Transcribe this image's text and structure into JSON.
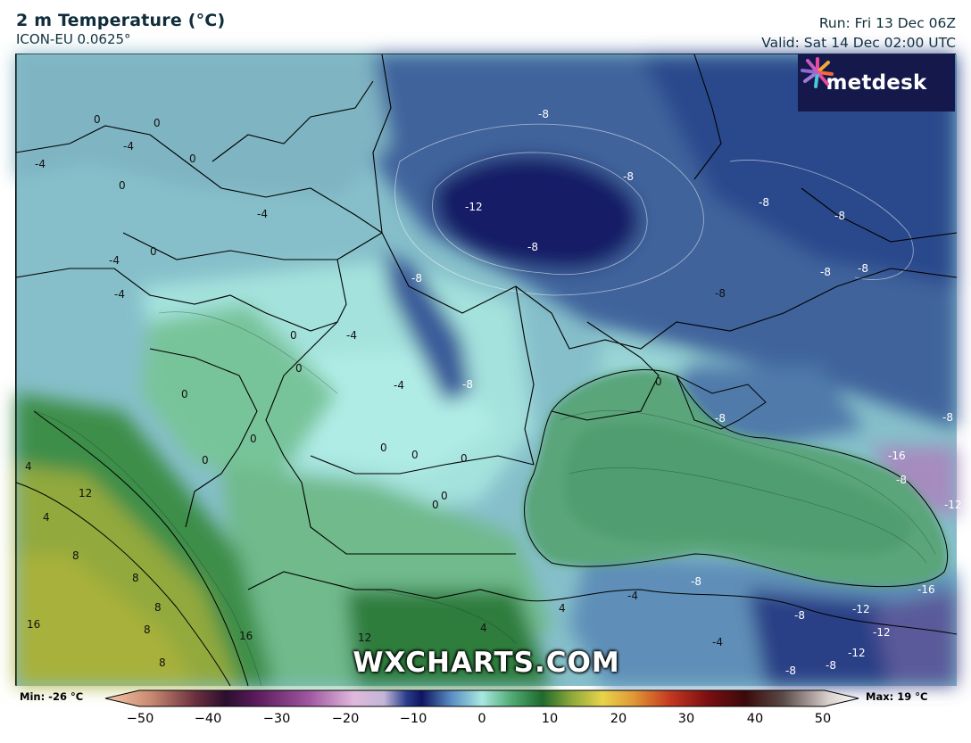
{
  "header": {
    "title": "2 m Temperature (°C)",
    "model": "ICON-EU 0.0625°",
    "run": "Run: Fri 13 Dec 06Z",
    "valid": "Valid: Sat 14 Dec 02:00 UTC"
  },
  "logo": {
    "text": "metdesk"
  },
  "watermark": "WXCHARTS.COM",
  "legend": {
    "min_label": "Min: -26 °C",
    "max_label": "Max: 19 °C",
    "ticks": [
      "−50",
      "−40",
      "−30",
      "−20",
      "−10",
      "0",
      "10",
      "20",
      "30",
      "40",
      "50"
    ]
  },
  "colors": {
    "very_cold": "#121a5c",
    "cold": "#2c4a8c",
    "cool": "#5a86b4",
    "mild_cool": "#7fb3c4",
    "near_zero": "#a6e4df",
    "mild": "#5fae82",
    "warm": "#2e7a3c",
    "warmer": "#8aa838",
    "sea": "#5aa57a"
  },
  "isotherm_labels": [
    "0",
    "0",
    "-4",
    "0",
    "-4",
    "0",
    "-4",
    "-4",
    "-4",
    "-8",
    "-12",
    "-8",
    "-8",
    "-8",
    "-8",
    "-8",
    "-8",
    "-8",
    "0",
    "0",
    "-4",
    "0",
    "-8",
    "-4",
    "-8",
    "0",
    "0",
    "-8",
    "0",
    "0",
    "0",
    "0",
    "0",
    "0",
    "0",
    "-8",
    "-16",
    "-8",
    "-12",
    "12",
    "4",
    "4",
    "8",
    "16",
    "16",
    "12",
    "8",
    "8",
    "8",
    "8",
    "-8",
    "-4",
    "-8",
    "-12",
    "-12",
    "-12",
    "-16",
    "-8",
    "-8",
    "-4",
    "4",
    "4"
  ]
}
